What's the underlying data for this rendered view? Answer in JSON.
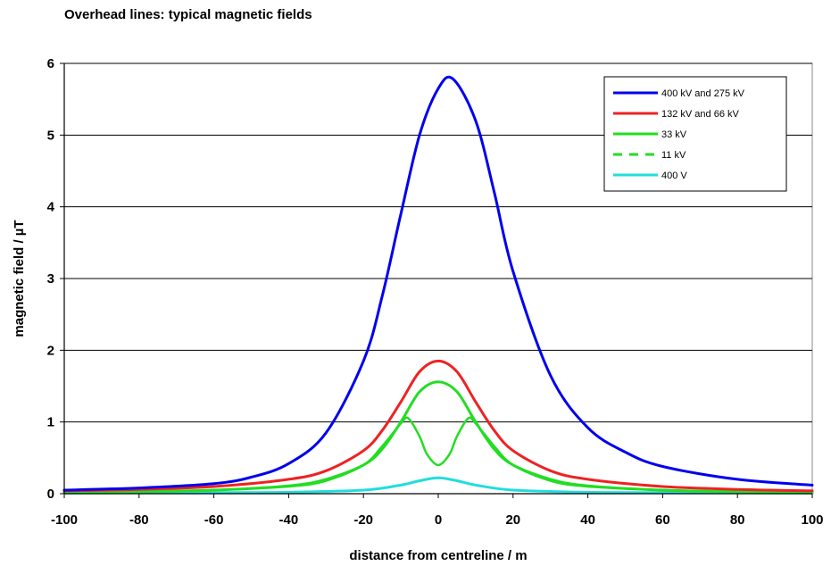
{
  "chart_data": {
    "type": "line",
    "title": "Overhead lines: typical magnetic fields",
    "xlabel": "distance from centreline / m",
    "ylabel": "magnetic field / µT",
    "xlim": [
      -100,
      100
    ],
    "ylim": [
      0,
      6
    ],
    "xticks": [
      "-100",
      "-80",
      "-60",
      "-40",
      "-20",
      "0",
      "20",
      "40",
      "60",
      "80",
      "100"
    ],
    "yticks": [
      "0",
      "1",
      "2",
      "3",
      "4",
      "5",
      "6"
    ],
    "grid": "horizontal",
    "legend_position": "top-right",
    "series": [
      {
        "name": "400 kV and 275 kV",
        "color": "#0000ee",
        "dash": "solid",
        "x": [
          -100,
          -80,
          -60,
          -50,
          -40,
          -30,
          -20,
          -15,
          -10,
          -5,
          0,
          4,
          10,
          15,
          20,
          30,
          40,
          50,
          60,
          80,
          100
        ],
        "y": [
          0.05,
          0.08,
          0.14,
          0.23,
          0.42,
          0.85,
          1.85,
          2.75,
          3.9,
          5.0,
          5.65,
          5.78,
          5.2,
          4.2,
          3.1,
          1.65,
          0.92,
          0.58,
          0.38,
          0.2,
          0.12
        ]
      },
      {
        "name": "132 kV and 66 kV",
        "color": "#ee2222",
        "dash": "solid",
        "x": [
          -100,
          -80,
          -60,
          -40,
          -30,
          -20,
          -15,
          -10,
          -5,
          0,
          5,
          10,
          15,
          20,
          30,
          40,
          60,
          80,
          100
        ],
        "y": [
          0.04,
          0.06,
          0.1,
          0.2,
          0.32,
          0.6,
          0.88,
          1.28,
          1.7,
          1.85,
          1.7,
          1.28,
          0.88,
          0.6,
          0.32,
          0.2,
          0.1,
          0.06,
          0.04
        ]
      },
      {
        "name": "33 kV",
        "color": "#22dd22",
        "dash": "solid",
        "x": [
          -100,
          -80,
          -60,
          -40,
          -30,
          -20,
          -15,
          -10,
          -5,
          0,
          5,
          10,
          15,
          20,
          30,
          40,
          60,
          80,
          100
        ],
        "y": [
          0.02,
          0.03,
          0.05,
          0.11,
          0.2,
          0.4,
          0.62,
          1.0,
          1.42,
          1.56,
          1.42,
          1.0,
          0.62,
          0.4,
          0.2,
          0.11,
          0.05,
          0.03,
          0.02
        ]
      },
      {
        "name": "11 kV",
        "color": "#22dd22",
        "dash": "dashed",
        "x": [
          -100,
          -80,
          -60,
          -40,
          -30,
          -20,
          -15,
          -10,
          -8,
          -5,
          -3,
          0,
          3,
          5,
          8,
          10,
          15,
          20,
          30,
          40,
          60,
          80,
          100
        ],
        "y": [
          0.02,
          0.03,
          0.05,
          0.1,
          0.18,
          0.4,
          0.66,
          0.98,
          1.05,
          0.8,
          0.55,
          0.4,
          0.55,
          0.8,
          1.05,
          0.98,
          0.66,
          0.4,
          0.18,
          0.1,
          0.05,
          0.03,
          0.02
        ]
      },
      {
        "name": "400 V",
        "color": "#22dddd",
        "dash": "solid",
        "x": [
          -100,
          -60,
          -40,
          -20,
          -10,
          -5,
          0,
          5,
          10,
          20,
          40,
          60,
          100
        ],
        "y": [
          0.01,
          0.015,
          0.02,
          0.05,
          0.12,
          0.18,
          0.22,
          0.18,
          0.12,
          0.05,
          0.02,
          0.015,
          0.01
        ]
      }
    ]
  }
}
